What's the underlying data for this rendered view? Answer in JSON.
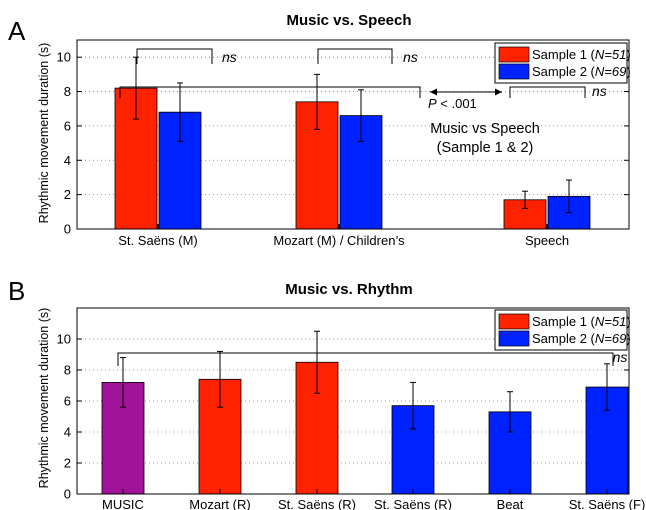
{
  "chart_data": [
    {
      "panel_label": "A",
      "type": "bar",
      "title": "Music vs. Speech",
      "ylabel": "Rhythmic movement duration (s)",
      "ylim": [
        0,
        11
      ],
      "yticks": [
        0,
        2,
        4,
        6,
        8,
        10
      ],
      "grid": "dotted horizontal",
      "legend_placement": "top-right",
      "categories": [
        "St. Saëns (M)",
        "Mozart (M) / Children’s",
        "Speech"
      ],
      "series": [
        {
          "name": "Sample 1",
          "n_text": "N=51",
          "color": "#ff2200",
          "values": [
            8.2,
            7.4,
            1.7
          ],
          "errors": [
            1.8,
            1.6,
            0.5
          ]
        },
        {
          "name": "Sample 2",
          "n_text": "N=69",
          "color": "#0022ff",
          "values": [
            6.8,
            6.6,
            1.9
          ],
          "errors": [
            1.7,
            1.5,
            0.95
          ]
        }
      ],
      "annotations": {
        "ns": "ns",
        "p_value": "P < .001",
        "comparison_line1": "Music vs Speech",
        "comparison_line2": "(Sample 1 & 2)"
      }
    },
    {
      "panel_label": "B",
      "type": "bar",
      "title": "Music vs. Rhythm",
      "ylabel": "Rhythmic movement duration (s)",
      "ylim": [
        0,
        12
      ],
      "yticks": [
        0,
        2,
        4,
        6,
        8,
        10
      ],
      "grid": "dotted horizontal",
      "legend_placement": "top-right",
      "legend": [
        {
          "name": "Sample 1",
          "n_text": "N=51",
          "color": "#ff2200"
        },
        {
          "name": "Sample 2",
          "n_text": "N=69",
          "color": "#0022ff"
        }
      ],
      "categories": [
        "MUSIC",
        "Mozart (R)",
        "St. Saëns (R)",
        "St. Saëns (R)",
        "Beat",
        "St. Saëns (F)"
      ],
      "values": [
        7.2,
        7.4,
        8.5,
        5.7,
        5.3,
        6.9
      ],
      "errors": [
        1.6,
        1.8,
        2.0,
        1.5,
        1.3,
        1.5
      ],
      "colors": [
        "#a0139a",
        "#ff2200",
        "#ff2200",
        "#0022ff",
        "#0022ff",
        "#0022ff"
      ],
      "annotations": {
        "ns": "ns"
      }
    }
  ]
}
